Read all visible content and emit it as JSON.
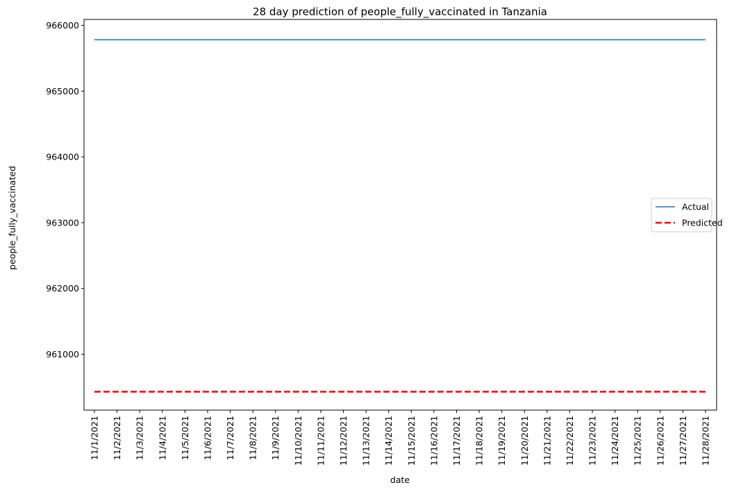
{
  "chart_data": {
    "type": "line",
    "title": "28 day prediction of people_fully_vaccinated in Tanzania",
    "xlabel": "date",
    "ylabel": "people_fully_vaccinated",
    "x": [
      "11/1/2021",
      "11/2/2021",
      "11/3/2021",
      "11/4/2021",
      "11/5/2021",
      "11/6/2021",
      "11/7/2021",
      "11/8/2021",
      "11/9/2021",
      "11/10/2021",
      "11/11/2021",
      "11/12/2021",
      "11/13/2021",
      "11/14/2021",
      "11/15/2021",
      "11/16/2021",
      "11/17/2021",
      "11/18/2021",
      "11/19/2021",
      "11/20/2021",
      "11/21/2021",
      "11/22/2021",
      "11/23/2021",
      "11/24/2021",
      "11/25/2021",
      "11/26/2021",
      "11/27/2021",
      "11/28/2021"
    ],
    "ylim": [
      960150,
      966090
    ],
    "yticks": [
      961000,
      962000,
      963000,
      964000,
      965000,
      966000
    ],
    "legend": "center-right",
    "grid": false,
    "series": [
      {
        "name": "Actual",
        "color": "#1f77b4",
        "style": "solid",
        "values": [
          965781,
          965781,
          965781,
          965781,
          965781,
          965781,
          965781,
          965781,
          965781,
          965781,
          965781,
          965781,
          965781,
          965781,
          965781,
          965781,
          965781,
          965781,
          965781,
          965781,
          965781,
          965781,
          965781,
          965781,
          965781,
          965781,
          965781,
          965781
        ]
      },
      {
        "name": "Predicted",
        "color": "#ff0000",
        "style": "dashed",
        "values": [
          960430,
          960430,
          960430,
          960430,
          960430,
          960430,
          960430,
          960430,
          960430,
          960430,
          960430,
          960430,
          960430,
          960430,
          960430,
          960430,
          960430,
          960430,
          960430,
          960430,
          960430,
          960430,
          960430,
          960430,
          960430,
          960430,
          960430,
          960430
        ]
      }
    ]
  }
}
